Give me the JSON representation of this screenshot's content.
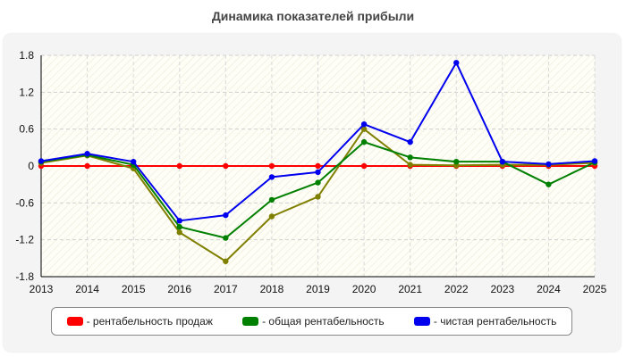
{
  "chart_data": {
    "type": "line",
    "title": "Динамика показателей прибыли",
    "x": [
      "2013",
      "2014",
      "2015",
      "2016",
      "2017",
      "2018",
      "2019",
      "2020",
      "2021",
      "2022",
      "2023",
      "2024",
      "2025"
    ],
    "y_ticks": [
      "1.8",
      "1.2",
      "0.6",
      "0",
      "-0.6",
      "-1.2",
      "-1.8"
    ],
    "ylim": [
      -1.8,
      1.8
    ],
    "grid": true,
    "legend_position": "bottom",
    "series": [
      {
        "name": "рентабельность продаж",
        "color": "#ff0000",
        "values": [
          0,
          0,
          0,
          0,
          0,
          0,
          0,
          0,
          0,
          0,
          0,
          0,
          0
        ]
      },
      {
        "name": "",
        "color": "#808000",
        "values": [
          0.05,
          0.17,
          -0.04,
          -1.08,
          -1.55,
          -0.82,
          -0.5,
          0.6,
          0.02,
          0.01,
          0.02,
          0.02,
          0.05
        ]
      },
      {
        "name": "общая рентабельность",
        "color": "#008000",
        "values": [
          0.07,
          0.18,
          0.02,
          -0.99,
          -1.17,
          -0.55,
          -0.27,
          0.39,
          0.14,
          0.07,
          0.07,
          -0.3,
          0.06
        ]
      },
      {
        "name": "чистая рентабельность",
        "color": "#0000ee",
        "values": [
          0.08,
          0.2,
          0.07,
          -0.89,
          -0.8,
          -0.18,
          -0.1,
          0.68,
          0.39,
          1.68,
          0.07,
          0.03,
          0.08
        ]
      }
    ],
    "legend": [
      {
        "label": "- рентабельность продаж",
        "color": "#ff0000"
      },
      {
        "label": "- общая рентабельность",
        "color": "#008000"
      },
      {
        "label": "- чистая рентабельность",
        "color": "#0000ee"
      }
    ]
  }
}
